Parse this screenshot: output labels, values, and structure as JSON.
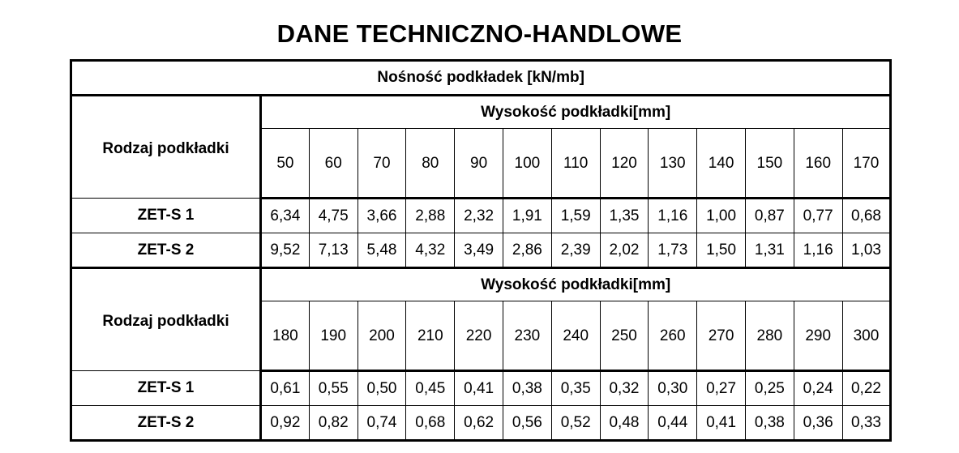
{
  "title": "DANE TECHNICZNO-HANDLOWE",
  "table": {
    "caption": "Nośność podkładek [kN/mb]",
    "sections": [
      {
        "row_header": "Rodzaj podkładki",
        "height_label": "Wysokość podkładki[mm]",
        "heights": [
          "50",
          "60",
          "70",
          "80",
          "90",
          "100",
          "110",
          "120",
          "130",
          "140",
          "150",
          "160",
          "170"
        ],
        "rows": [
          {
            "name": "ZET-S 1",
            "values": [
              "6,34",
              "4,75",
              "3,66",
              "2,88",
              "2,32",
              "1,91",
              "1,59",
              "1,35",
              "1,16",
              "1,00",
              "0,87",
              "0,77",
              "0,68"
            ]
          },
          {
            "name": "ZET-S 2",
            "values": [
              "9,52",
              "7,13",
              "5,48",
              "4,32",
              "3,49",
              "2,86",
              "2,39",
              "2,02",
              "1,73",
              "1,50",
              "1,31",
              "1,16",
              "1,03"
            ]
          }
        ]
      },
      {
        "row_header": "Rodzaj podkładki",
        "height_label": "Wysokość podkładki[mm]",
        "heights": [
          "180",
          "190",
          "200",
          "210",
          "220",
          "230",
          "240",
          "250",
          "260",
          "270",
          "280",
          "290",
          "300"
        ],
        "rows": [
          {
            "name": "ZET-S 1",
            "values": [
              "0,61",
              "0,55",
              "0,50",
              "0,45",
              "0,41",
              "0,38",
              "0,35",
              "0,32",
              "0,30",
              "0,27",
              "0,25",
              "0,24",
              "0,22"
            ]
          },
          {
            "name": "ZET-S 2",
            "values": [
              "0,92",
              "0,82",
              "0,74",
              "0,68",
              "0,62",
              "0,56",
              "0,52",
              "0,48",
              "0,44",
              "0,41",
              "0,38",
              "0,36",
              "0,33"
            ]
          }
        ]
      }
    ]
  }
}
